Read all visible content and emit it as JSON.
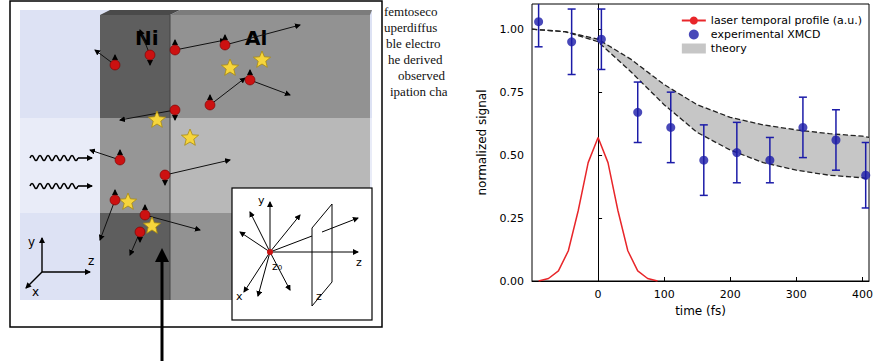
{
  "diagram": {
    "materials": [
      "Ni",
      "Al"
    ],
    "axes": [
      "y",
      "x",
      "z"
    ],
    "inset": {
      "labels": [
        "y",
        "x",
        "z₀",
        "z",
        "z"
      ]
    }
  },
  "text_fragments": [
    "femtoseco",
    "uperdiffus",
    "ble electro",
    "he derived",
    "observed",
    "ipation cha"
  ],
  "chart_data": {
    "type": "scatter",
    "xlabel": "time (fs)",
    "ylabel": "normalized signal",
    "xlim": [
      -100,
      410
    ],
    "xticks": [
      0,
      100,
      200,
      300,
      400
    ],
    "ylim": [
      0,
      1.1
    ],
    "yticks": [
      {
        "value": 0,
        "label": "0.00"
      },
      {
        "value": 0.25,
        "label": "0.25"
      },
      {
        "value": 0.5,
        "label": "0.50"
      },
      {
        "value": 0.75,
        "label": "0.75"
      },
      {
        "value": 1,
        "label": "1.00"
      }
    ],
    "grid": false,
    "legend": "upper right",
    "series": [
      {
        "name": "laser temporal profile (a.u.)",
        "type": "line",
        "color": "#e8262a",
        "line_style": "solid",
        "x": [
          -90,
          -75,
          -60,
          -45,
          -30,
          -15,
          0,
          15,
          30,
          45,
          60,
          75,
          90
        ],
        "values": [
          0,
          0.01,
          0.04,
          0.12,
          0.28,
          0.47,
          0.57,
          0.47,
          0.28,
          0.12,
          0.04,
          0.01,
          0
        ]
      },
      {
        "name": "experimental XMCD",
        "type": "scatter",
        "color": "#1c1ca8",
        "marker": "circle",
        "x": [
          -90,
          -40,
          5,
          60,
          110,
          160,
          210,
          260,
          310,
          360,
          405
        ],
        "values": [
          1.03,
          0.95,
          0.96,
          0.67,
          0.61,
          0.48,
          0.51,
          0.48,
          0.61,
          0.56,
          0.42
        ],
        "errors": [
          0.1,
          0.13,
          0.12,
          0.12,
          0.14,
          0.14,
          0.12,
          0.09,
          0.12,
          0.12,
          0.13
        ]
      },
      {
        "name": "theory",
        "type": "band",
        "color": "#c6c6c6",
        "line_style": "dashed",
        "x": [
          -100,
          -50,
          0,
          50,
          100,
          150,
          200,
          250,
          300,
          350,
          400,
          410
        ],
        "upper": [
          1.0,
          0.99,
          0.96,
          0.88,
          0.78,
          0.7,
          0.65,
          0.62,
          0.6,
          0.585,
          0.575,
          0.57
        ],
        "lower": [
          1.0,
          0.99,
          0.95,
          0.83,
          0.7,
          0.59,
          0.52,
          0.47,
          0.44,
          0.42,
          0.41,
          0.405
        ]
      }
    ]
  }
}
